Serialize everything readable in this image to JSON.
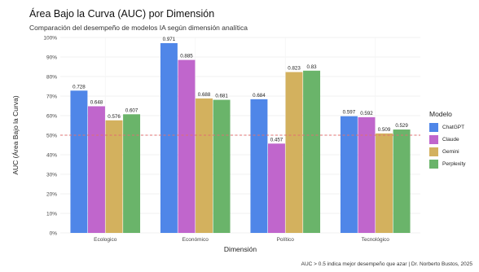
{
  "title": "Área Bajo la Curva (AUC) por Dimensión",
  "subtitle": "Comparación del desempeño de modelos IA según dimensión analítica",
  "caption": "AUC > 0.5 indica mejor desempeño que azar | Dr. Norberto Bustos, 2025",
  "colors": {
    "ChatGPT": "#4f86e8",
    "Claude": "#c066cc",
    "Gemini": "#d3b15e",
    "Perplexity": "#6ab46a",
    "threshold": "#e07070",
    "grid": "#ececec"
  },
  "legend": {
    "title": "Modelo",
    "items": [
      "ChatGPT",
      "Claude",
      "Gemini",
      "Perplexity"
    ]
  },
  "chart_data": {
    "type": "bar",
    "xlabel": "Dimensión",
    "ylabel": "AUC (Área Bajo la Curva)",
    "categories": [
      "Ecologico",
      "Económico",
      "Político",
      "Tecnológico"
    ],
    "series": [
      {
        "name": "ChatGPT",
        "values": [
          0.728,
          0.971,
          0.684,
          0.597
        ]
      },
      {
        "name": "Claude",
        "values": [
          0.648,
          0.885,
          0.457,
          0.592
        ]
      },
      {
        "name": "Gemini",
        "values": [
          0.576,
          0.688,
          0.823,
          0.509
        ]
      },
      {
        "name": "Perplexity",
        "values": [
          0.607,
          0.681,
          0.83,
          0.529
        ]
      }
    ],
    "data_labels": [
      [
        "0.728",
        "0.971",
        "0.684",
        "0.597"
      ],
      [
        "0.648",
        "0.885",
        "0.457",
        "0.592"
      ],
      [
        "0.576",
        "0.688",
        "0.823",
        "0.509"
      ],
      [
        "0.607",
        "0.681",
        "0.83",
        "0.529"
      ]
    ],
    "yticks": [
      "0%",
      "10%",
      "20%",
      "30%",
      "40%",
      "50%",
      "60%",
      "70%",
      "80%",
      "90%",
      "100%"
    ],
    "ylim": [
      0,
      1
    ],
    "threshold": 0.5,
    "grid": true,
    "legend_position": "right"
  }
}
